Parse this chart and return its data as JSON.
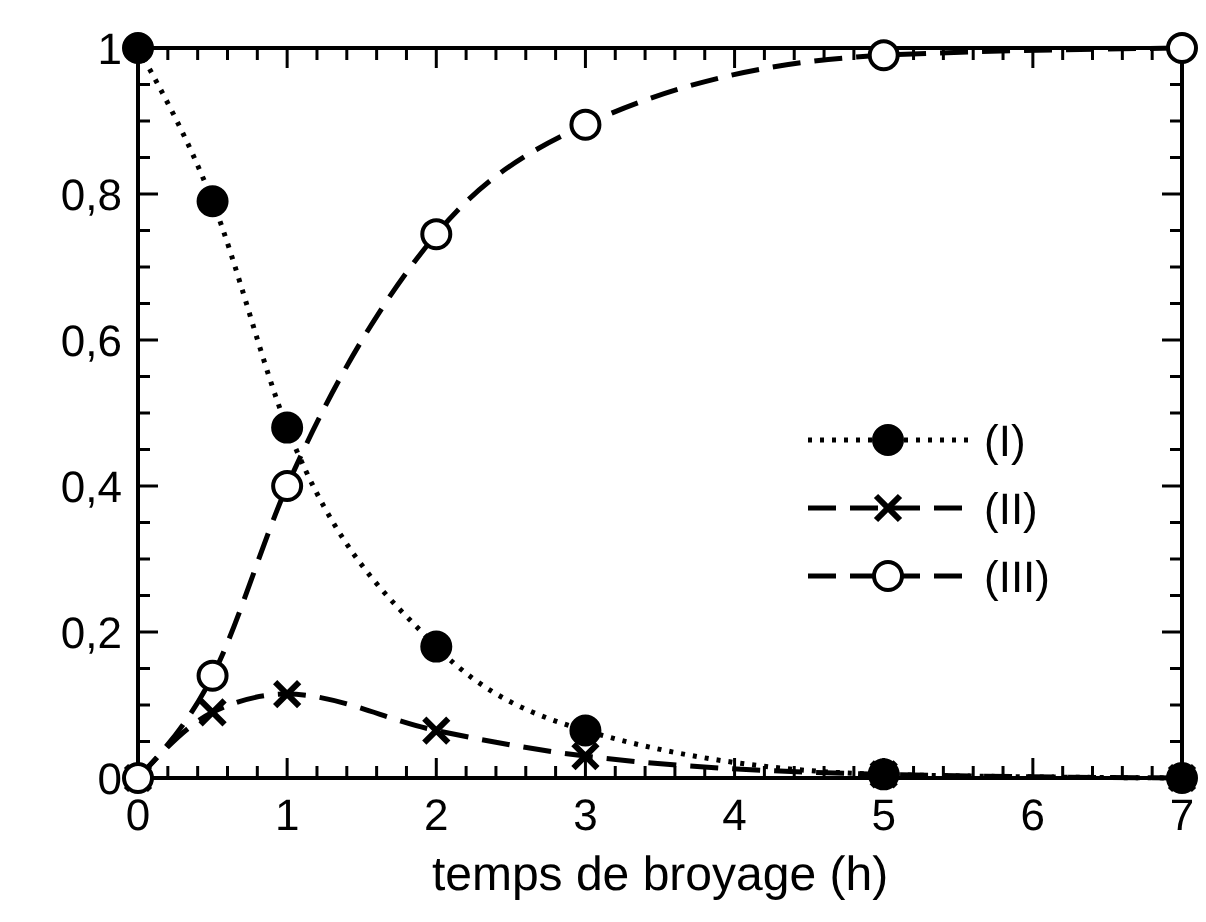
{
  "chart_data": {
    "type": "line",
    "xlabel": "temps de broyage (h)",
    "x": [
      0,
      0.5,
      1,
      2,
      3,
      5,
      7
    ],
    "series": [
      {
        "name": "(I)",
        "color": "#000000",
        "values": [
          1,
          0.79,
          0.48,
          0.18,
          0.065,
          0.005,
          0
        ],
        "marker": "circle",
        "line_style": "dotted"
      },
      {
        "name": "(II)",
        "color": "#000000",
        "values": [
          0,
          0.09,
          0.115,
          0.065,
          0.03,
          0.005,
          0
        ],
        "marker": "cross",
        "line_style": "dashed"
      },
      {
        "name": "(III)",
        "color": "#000000",
        "values": [
          0,
          0.14,
          0.4,
          0.745,
          0.895,
          0.99,
          1
        ],
        "marker": "circle",
        "line_style": "dashed"
      }
    ],
    "xlim": [
      0,
      7
    ],
    "ylim": [
      0,
      1
    ],
    "xticks": [
      0,
      {
        "value": 0.2,
        "label": null
      },
      {
        "value": 0.4,
        "label": null
      },
      {
        "value": 0.6,
        "label": null
      },
      {
        "value": 0.8,
        "label": null
      },
      1,
      {
        "value": 1.2,
        "label": null
      },
      {
        "value": 1.4,
        "label": null
      },
      {
        "value": 1.6,
        "label": null
      },
      {
        "value": 1.8,
        "label": null
      },
      2,
      {
        "value": 2.2,
        "label": null
      },
      {
        "value": 2.4,
        "label": null
      },
      {
        "value": 2.6,
        "label": null
      },
      {
        "value": 2.8,
        "label": null
      },
      3,
      {
        "value": 3.2,
        "label": null
      },
      {
        "value": 3.4,
        "label": null
      },
      {
        "value": 3.6,
        "label": null
      },
      {
        "value": 3.8,
        "label": null
      },
      4,
      {
        "value": 4.2,
        "label": null
      },
      {
        "value": 4.4,
        "label": null
      },
      {
        "value": 4.6,
        "label": null
      },
      {
        "value": 4.8,
        "label": null
      },
      5,
      {
        "value": 5.2,
        "label": null
      },
      {
        "value": 5.4,
        "label": null
      },
      {
        "value": 5.6,
        "label": null
      },
      {
        "value": 5.8,
        "label": null
      },
      6,
      {
        "value": 6.2,
        "label": null
      },
      {
        "value": 6.4,
        "label": null
      },
      {
        "value": 6.6,
        "label": null
      },
      {
        "value": 6.8,
        "label": null
      },
      7
    ],
    "yticks": [
      0,
      {
        "value": 0.05,
        "label": null
      },
      {
        "value": 0.1,
        "label": null
      },
      {
        "value": 0.15,
        "label": null
      },
      {
        "value": 0.2,
        "label": "0,2"
      },
      {
        "value": 0.25,
        "label": null
      },
      {
        "value": 0.3,
        "label": null
      },
      {
        "value": 0.35,
        "label": null
      },
      {
        "value": 0.4,
        "label": "0,4"
      },
      {
        "value": 0.45,
        "label": null
      },
      {
        "value": 0.5,
        "label": null
      },
      {
        "value": 0.55,
        "label": null
      },
      {
        "value": 0.6,
        "label": "0,6"
      },
      {
        "value": 0.65,
        "label": null
      },
      {
        "value": 0.7,
        "label": null
      },
      {
        "value": 0.75,
        "label": null
      },
      {
        "value": 0.8,
        "label": "0,8"
      },
      {
        "value": 0.85,
        "label": null
      },
      {
        "value": 0.9,
        "label": null
      },
      {
        "value": 0.95,
        "label": null
      },
      1
    ],
    "legend": "right",
    "grid": false
  }
}
